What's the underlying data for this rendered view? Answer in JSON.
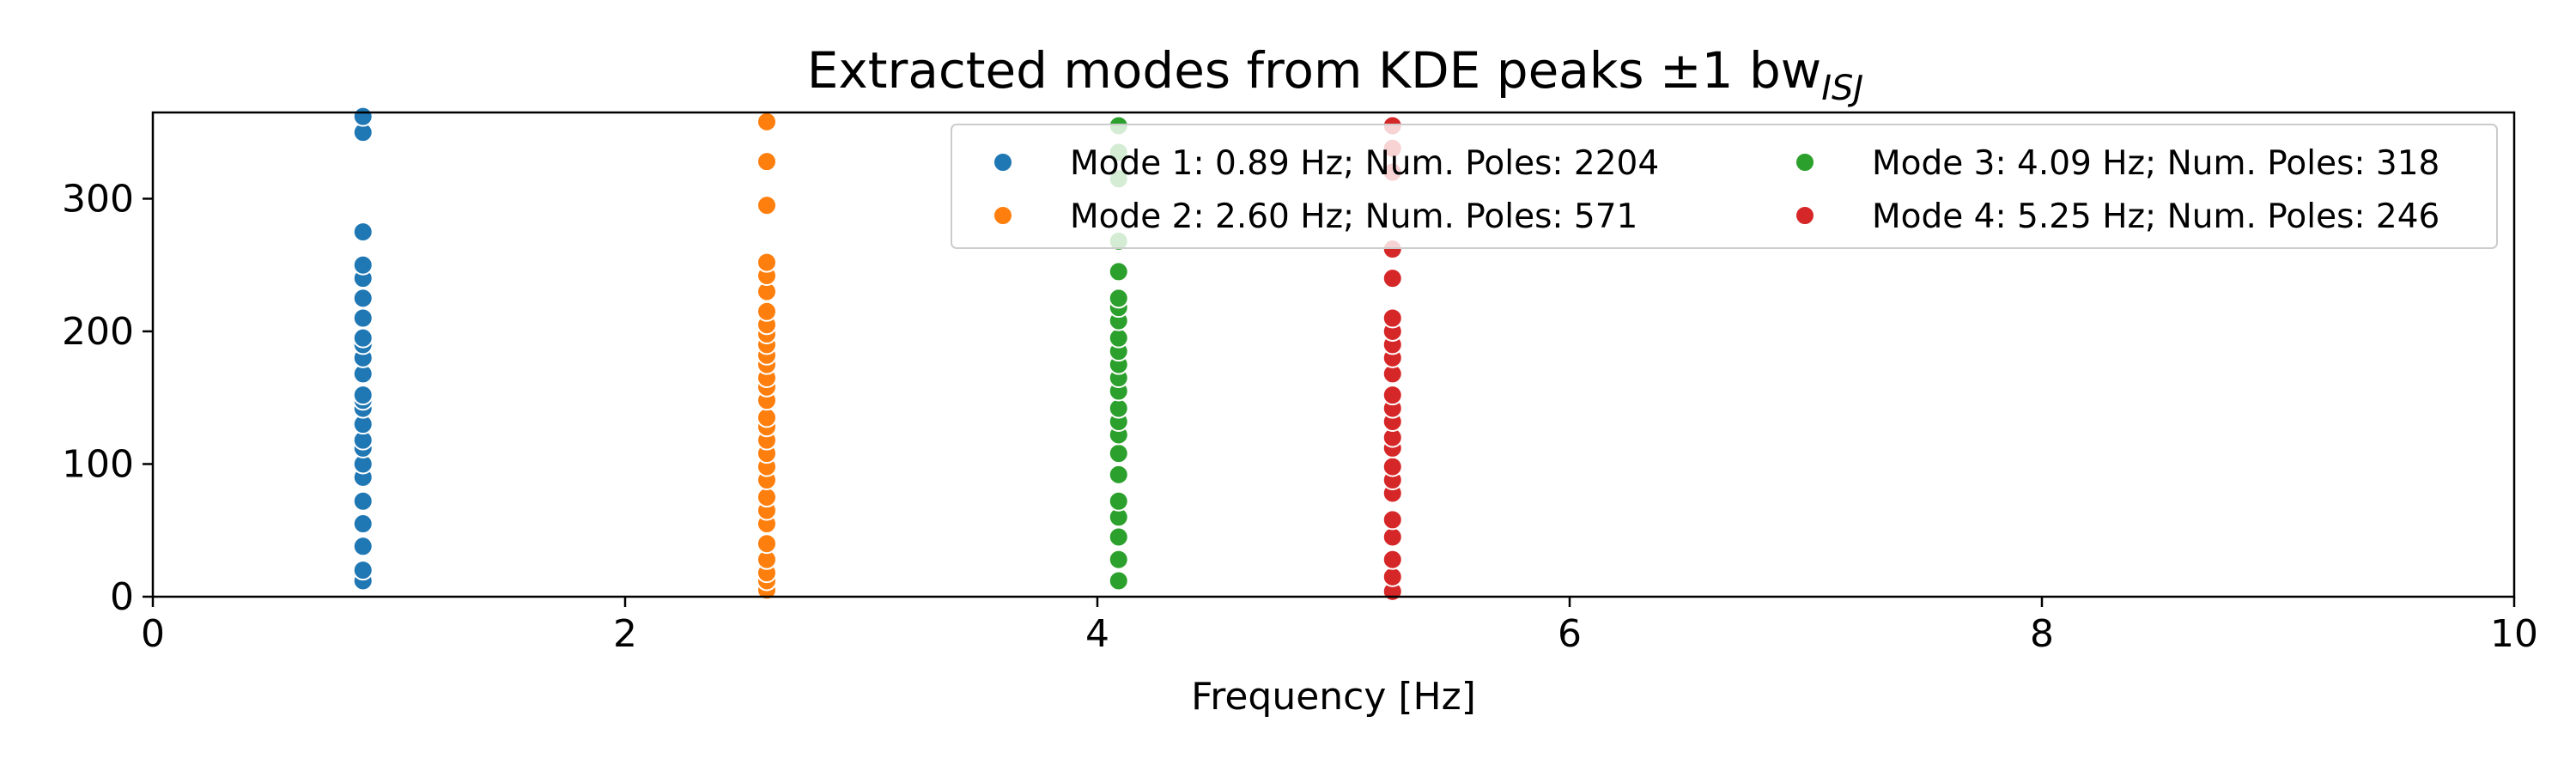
{
  "chart_data": {
    "type": "scatter",
    "title": "Extracted modes from KDE peaks ±1 bw",
    "title_subscript": "ISJ",
    "xlabel": "Frequency [Hz]",
    "ylabel": "",
    "xlim": [
      0,
      10
    ],
    "ylim": [
      0,
      365
    ],
    "x_ticks": [
      0,
      2,
      4,
      6,
      8,
      10
    ],
    "y_ticks": [
      0,
      100,
      200,
      300
    ],
    "x_tick_labels": [
      "0",
      "2",
      "4",
      "6",
      "8",
      "10"
    ],
    "y_tick_labels": [
      "0",
      "100",
      "200",
      "300"
    ],
    "grid": false,
    "legend_position": "top-right",
    "legend_columns": 2,
    "series": [
      {
        "name": "Mode 1: 0.89 Hz; Num. Poles: 2204",
        "color": "#1f77b4",
        "x": 0.89,
        "y": [
          12,
          20,
          38,
          55,
          72,
          90,
          100,
          112,
          118,
          130,
          142,
          148,
          152,
          168,
          180,
          190,
          195,
          210,
          225,
          240,
          250,
          275,
          350,
          362
        ]
      },
      {
        "name": "Mode 2: 2.60 Hz; Num. Poles: 571",
        "color": "#ff7f0e",
        "x": 2.6,
        "y": [
          5,
          12,
          18,
          28,
          40,
          55,
          65,
          75,
          88,
          98,
          108,
          118,
          128,
          135,
          148,
          158,
          165,
          175,
          182,
          190,
          198,
          205,
          215,
          230,
          242,
          252,
          295,
          328,
          358
        ]
      },
      {
        "name": "Mode 3: 4.09 Hz; Num. Poles: 318",
        "color": "#2ca02c",
        "x": 4.09,
        "y": [
          12,
          28,
          45,
          60,
          72,
          92,
          108,
          122,
          132,
          142,
          155,
          165,
          175,
          185,
          195,
          208,
          218,
          225,
          245,
          268,
          315,
          335,
          355
        ]
      },
      {
        "name": "Mode 4: 5.25 Hz; Num. Poles: 246",
        "color": "#d62728",
        "x": 5.25,
        "y": [
          4,
          15,
          28,
          45,
          58,
          78,
          88,
          98,
          112,
          120,
          132,
          142,
          152,
          168,
          180,
          190,
          200,
          210,
          240,
          262,
          320,
          338,
          355
        ]
      }
    ]
  }
}
